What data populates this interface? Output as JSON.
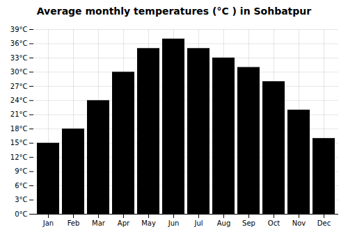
{
  "chart_data": {
    "type": "bar",
    "title": "Average monthly temperatures (°C ) in Sohbatpur",
    "categories": [
      "Jan",
      "Feb",
      "Mar",
      "Apr",
      "May",
      "Jun",
      "Jul",
      "Aug",
      "Sep",
      "Oct",
      "Nov",
      "Dec"
    ],
    "values": [
      15,
      18,
      24,
      30,
      35,
      37,
      35,
      33,
      31,
      28,
      22,
      16
    ],
    "ylim": [
      0,
      39
    ],
    "yticks": [
      {
        "value": 0,
        "label": "0°C"
      },
      {
        "value": 3,
        "label": "3°C"
      },
      {
        "value": 6,
        "label": "6°C"
      },
      {
        "value": 9,
        "label": "9°C"
      },
      {
        "value": 12,
        "label": "12°C"
      },
      {
        "value": 15,
        "label": "15°C"
      },
      {
        "value": 18,
        "label": "18°C"
      },
      {
        "value": 21,
        "label": "21°C"
      },
      {
        "value": 24,
        "label": "24°C"
      },
      {
        "value": 27,
        "label": "27°C"
      },
      {
        "value": 30,
        "label": "30°C"
      },
      {
        "value": 33,
        "label": "33°C"
      },
      {
        "value": 36,
        "label": "36°C"
      },
      {
        "value": 39,
        "label": "39°C"
      }
    ],
    "grid": true
  }
}
